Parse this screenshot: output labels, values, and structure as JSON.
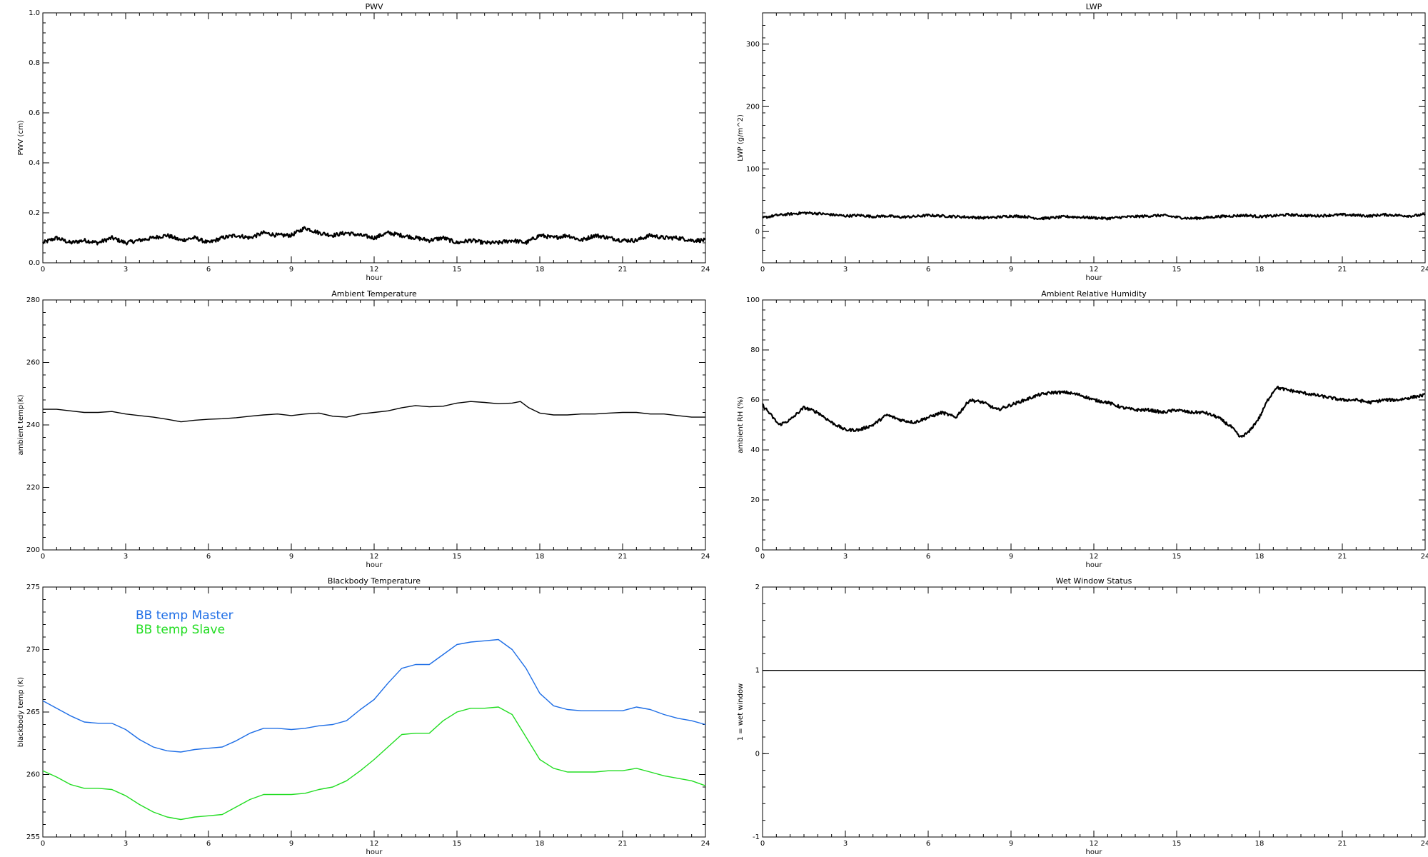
{
  "chart_data": [
    {
      "id": "pwv",
      "type": "line",
      "title": "PWV",
      "xlabel": "hour",
      "ylabel": "PWV (cm)",
      "xlim": [
        0,
        24
      ],
      "ylim": [
        0,
        1.0
      ],
      "xticks": [
        0,
        3,
        6,
        9,
        12,
        15,
        18,
        21,
        24
      ],
      "yticks": [
        0.0,
        0.2,
        0.4,
        0.6,
        0.8,
        1.0
      ],
      "ytick_labels": [
        "0.0",
        "0.2",
        "0.4",
        "0.6",
        "0.8",
        "1.0"
      ],
      "noise": 0.008,
      "series": [
        {
          "color": "#000000",
          "x": [
            0,
            0.5,
            1,
            1.5,
            2,
            2.5,
            3,
            3.5,
            4,
            4.5,
            5,
            5.5,
            6,
            6.5,
            7,
            7.5,
            8,
            8.5,
            9,
            9.5,
            10,
            10.5,
            11,
            11.5,
            12,
            12.5,
            13,
            13.5,
            14,
            14.5,
            15,
            15.5,
            16,
            16.5,
            17,
            17.5,
            18,
            18.5,
            19,
            19.5,
            20,
            20.5,
            21,
            21.5,
            22,
            22.5,
            23,
            23.5,
            24
          ],
          "y": [
            0.08,
            0.1,
            0.08,
            0.09,
            0.08,
            0.1,
            0.08,
            0.09,
            0.1,
            0.11,
            0.09,
            0.1,
            0.08,
            0.1,
            0.11,
            0.1,
            0.12,
            0.11,
            0.11,
            0.14,
            0.12,
            0.11,
            0.12,
            0.11,
            0.1,
            0.12,
            0.11,
            0.1,
            0.09,
            0.1,
            0.08,
            0.09,
            0.08,
            0.08,
            0.09,
            0.08,
            0.11,
            0.1,
            0.11,
            0.09,
            0.11,
            0.1,
            0.09,
            0.09,
            0.11,
            0.1,
            0.1,
            0.09,
            0.09
          ]
        }
      ]
    },
    {
      "id": "lwp",
      "type": "line",
      "title": "LWP",
      "xlabel": "hour",
      "ylabel": "LWP (g/m^2)",
      "xlim": [
        0,
        24
      ],
      "ylim": [
        -50,
        350
      ],
      "xticks": [
        0,
        3,
        6,
        9,
        12,
        15,
        18,
        21,
        24
      ],
      "yticks": [
        0,
        100,
        200,
        300
      ],
      "ytick_labels": [
        "0",
        "100",
        "200",
        "300"
      ],
      "noise": 2,
      "series": [
        {
          "color": "#000000",
          "x": [
            0,
            0.5,
            1,
            1.5,
            2,
            2.5,
            3,
            3.5,
            4,
            4.5,
            5,
            5.5,
            6,
            6.5,
            7,
            7.5,
            8,
            8.5,
            9,
            9.5,
            10,
            10.5,
            11,
            11.5,
            12,
            12.5,
            13,
            13.5,
            14,
            14.5,
            15,
            15.5,
            16,
            16.5,
            17,
            17.5,
            18,
            18.5,
            19,
            19.5,
            20,
            20.5,
            21,
            21.5,
            22,
            22.5,
            23,
            23.5,
            24
          ],
          "y": [
            22,
            26,
            28,
            30,
            29,
            27,
            25,
            26,
            24,
            25,
            23,
            24,
            26,
            25,
            24,
            23,
            22,
            23,
            25,
            24,
            21,
            22,
            24,
            23,
            22,
            21,
            23,
            24,
            25,
            26,
            23,
            21,
            22,
            24,
            25,
            26,
            24,
            25,
            27,
            26,
            25,
            26,
            27,
            26,
            25,
            27,
            26,
            25,
            27
          ]
        }
      ]
    },
    {
      "id": "ambient-temp",
      "type": "line",
      "title": "Ambient Temperature",
      "xlabel": "hour",
      "ylabel": "ambient temp(K)",
      "xlim": [
        0,
        24
      ],
      "ylim": [
        200,
        280
      ],
      "xticks": [
        0,
        3,
        6,
        9,
        12,
        15,
        18,
        21,
        24
      ],
      "yticks": [
        200,
        220,
        240,
        260,
        280
      ],
      "ytick_labels": [
        "200",
        "220",
        "240",
        "260",
        "280"
      ],
      "noise": 0,
      "series": [
        {
          "color": "#000000",
          "x": [
            0,
            0.5,
            1,
            1.5,
            2,
            2.5,
            3,
            3.5,
            4,
            4.5,
            5,
            5.5,
            6,
            6.5,
            7,
            7.5,
            8,
            8.5,
            9,
            9.5,
            10,
            10.5,
            11,
            11.5,
            12,
            12.5,
            13,
            13.5,
            14,
            14.5,
            15,
            15.5,
            16,
            16.5,
            17,
            17.3,
            17.6,
            18,
            18.5,
            19,
            19.5,
            20,
            20.5,
            21,
            21.5,
            22,
            22.5,
            23,
            23.5,
            24
          ],
          "y": [
            245.0,
            245.0,
            244.5,
            244.0,
            244.0,
            244.3,
            243.5,
            243.0,
            242.5,
            241.8,
            241.0,
            241.5,
            241.8,
            242.0,
            242.3,
            242.8,
            243.2,
            243.5,
            243.0,
            243.5,
            243.8,
            242.8,
            242.5,
            243.5,
            244.0,
            244.5,
            245.5,
            246.2,
            245.8,
            246.0,
            247.0,
            247.5,
            247.2,
            246.8,
            247.0,
            247.5,
            245.5,
            243.8,
            243.2,
            243.2,
            243.5,
            243.5,
            243.8,
            244.0,
            244.0,
            243.5,
            243.5,
            243.0,
            242.5,
            242.5
          ]
        }
      ]
    },
    {
      "id": "ambient-rh",
      "type": "line",
      "title": "Ambient Relative Humidity",
      "xlabel": "hour",
      "ylabel": "ambient RH (%)",
      "xlim": [
        0,
        24
      ],
      "ylim": [
        0,
        100
      ],
      "xticks": [
        0,
        3,
        6,
        9,
        12,
        15,
        18,
        21,
        24
      ],
      "yticks": [
        0,
        20,
        40,
        60,
        80,
        100
      ],
      "ytick_labels": [
        "0",
        "20",
        "40",
        "60",
        "80",
        "100"
      ],
      "noise": 0.6,
      "series": [
        {
          "color": "#000000",
          "x": [
            0,
            0.3,
            0.6,
            1,
            1.5,
            2,
            2.5,
            3,
            3.5,
            4,
            4.5,
            5,
            5.5,
            6,
            6.5,
            7,
            7.5,
            8,
            8.5,
            9,
            9.5,
            10,
            10.5,
            11,
            11.5,
            12,
            12.5,
            13,
            13.5,
            14,
            14.5,
            15,
            15.5,
            16,
            16.5,
            17,
            17.3,
            17.6,
            18,
            18.3,
            18.6,
            19,
            19.5,
            20,
            20.5,
            21,
            21.5,
            22,
            22.5,
            23,
            23.5,
            24
          ],
          "y": [
            58,
            54,
            50,
            52,
            57,
            55,
            51,
            48,
            48,
            50,
            54,
            52,
            51,
            53,
            55,
            53,
            60,
            59,
            56,
            58,
            60,
            62,
            63,
            63,
            62,
            60,
            59,
            57,
            56,
            56,
            55,
            56,
            55,
            55,
            53,
            49,
            45,
            47,
            53,
            60,
            65,
            64,
            63,
            62,
            61,
            60,
            60,
            59,
            60,
            60,
            61,
            62
          ]
        }
      ]
    },
    {
      "id": "blackbody-temp",
      "type": "line",
      "title": "Blackbody Temperature",
      "xlabel": "hour",
      "ylabel": "blackbody temp (K)",
      "xlim": [
        0,
        24
      ],
      "ylim": [
        255,
        275
      ],
      "xticks": [
        0,
        3,
        6,
        9,
        12,
        15,
        18,
        21,
        24
      ],
      "yticks": [
        255,
        260,
        265,
        270,
        275
      ],
      "ytick_labels": [
        "255",
        "260",
        "265",
        "270",
        "275"
      ],
      "noise": 0,
      "legend": [
        {
          "label": "BB temp Master",
          "color": "#1E6EE6"
        },
        {
          "label": "BB temp Slave",
          "color": "#22DD22"
        }
      ],
      "series": [
        {
          "name": "BB temp Master",
          "color": "#1E6EE6",
          "x": [
            0,
            0.5,
            1,
            1.5,
            2,
            2.5,
            3,
            3.5,
            4,
            4.5,
            5,
            5.5,
            6,
            6.5,
            7,
            7.5,
            8,
            8.5,
            9,
            9.5,
            10,
            10.5,
            11,
            11.5,
            12,
            12.5,
            13,
            13.5,
            14,
            14.5,
            15,
            15.5,
            16,
            16.5,
            17,
            17.5,
            18,
            18.5,
            19,
            19.5,
            20,
            20.5,
            21,
            21.5,
            22,
            22.5,
            23,
            23.5,
            24
          ],
          "y": [
            265.9,
            265.3,
            264.7,
            264.2,
            264.1,
            264.1,
            263.6,
            262.8,
            262.2,
            261.9,
            261.8,
            262.0,
            262.1,
            262.2,
            262.7,
            263.3,
            263.7,
            263.7,
            263.6,
            263.7,
            263.9,
            264.0,
            264.3,
            265.2,
            266.0,
            267.3,
            268.5,
            268.8,
            268.8,
            269.6,
            270.4,
            270.6,
            270.7,
            270.8,
            270.0,
            268.5,
            266.5,
            265.5,
            265.2,
            265.1,
            265.1,
            265.1,
            265.1,
            265.4,
            265.2,
            264.8,
            264.5,
            264.3,
            264.0
          ]
        },
        {
          "name": "BB temp Slave",
          "color": "#22DD22",
          "x": [
            0,
            0.5,
            1,
            1.5,
            2,
            2.5,
            3,
            3.5,
            4,
            4.5,
            5,
            5.5,
            6,
            6.5,
            7,
            7.5,
            8,
            8.5,
            9,
            9.5,
            10,
            10.5,
            11,
            11.5,
            12,
            12.5,
            13,
            13.5,
            14,
            14.5,
            15,
            15.5,
            16,
            16.5,
            17,
            17.5,
            18,
            18.5,
            19,
            19.5,
            20,
            20.5,
            21,
            21.5,
            22,
            22.5,
            23,
            23.5,
            24
          ],
          "y": [
            260.3,
            259.8,
            259.2,
            258.9,
            258.9,
            258.8,
            258.3,
            257.6,
            257.0,
            256.6,
            256.4,
            256.6,
            256.7,
            256.8,
            257.4,
            258.0,
            258.4,
            258.4,
            258.4,
            258.5,
            258.8,
            259.0,
            259.5,
            260.3,
            261.2,
            262.2,
            263.2,
            263.3,
            263.3,
            264.3,
            265.0,
            265.3,
            265.3,
            265.4,
            264.8,
            263.0,
            261.2,
            260.5,
            260.2,
            260.2,
            260.2,
            260.3,
            260.3,
            260.5,
            260.2,
            259.9,
            259.7,
            259.5,
            259.1
          ]
        }
      ]
    },
    {
      "id": "wet-window",
      "type": "line",
      "title": "Wet Window Status",
      "xlabel": "hour",
      "ylabel": "1 = wet window",
      "xlim": [
        0,
        24
      ],
      "ylim": [
        -1,
        2
      ],
      "xticks": [
        0,
        3,
        6,
        9,
        12,
        15,
        18,
        21,
        24
      ],
      "yticks": [
        -1,
        0,
        1,
        2
      ],
      "ytick_labels": [
        "-1",
        "0",
        "1",
        "2"
      ],
      "noise": 0,
      "series": [
        {
          "color": "#000000",
          "x": [
            0,
            24
          ],
          "y": [
            1,
            1
          ]
        }
      ]
    }
  ]
}
